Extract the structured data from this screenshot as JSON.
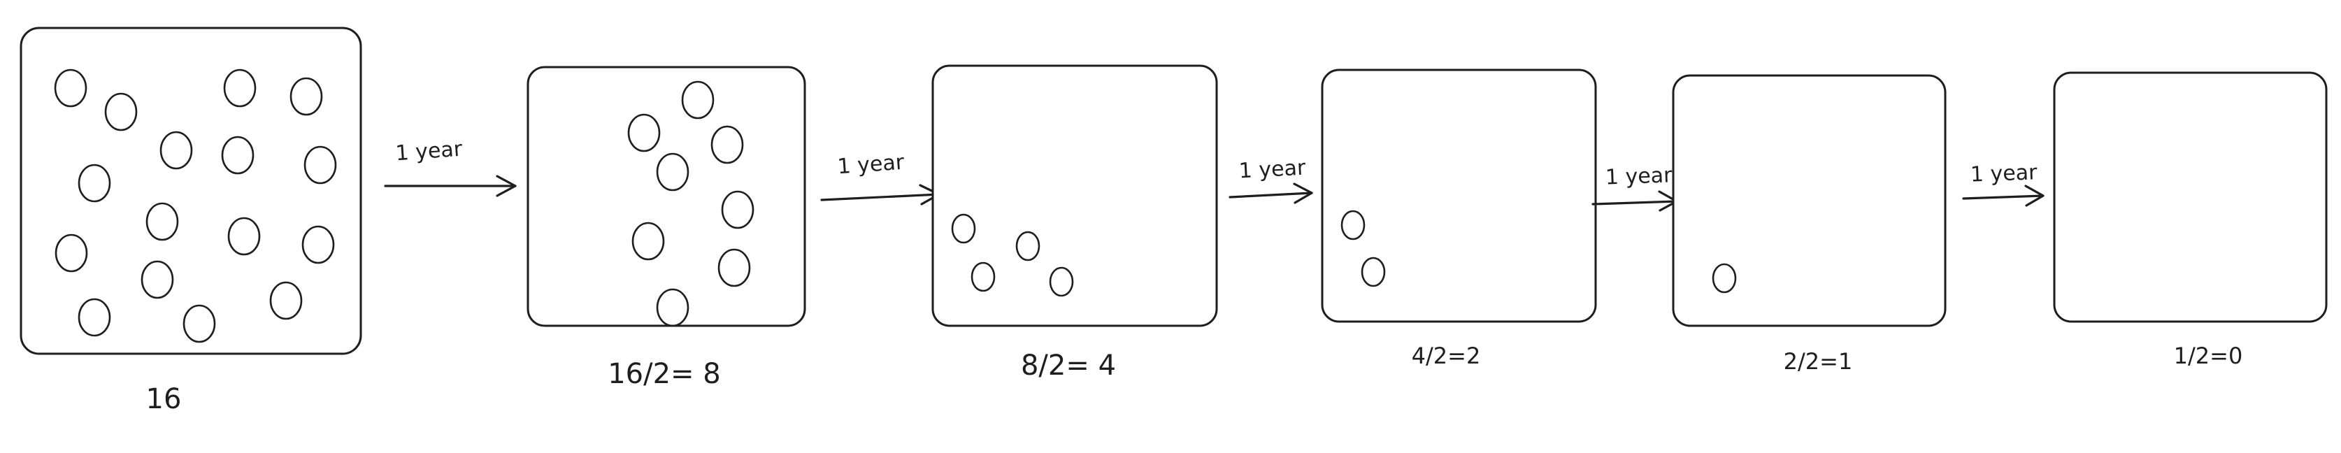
{
  "arrow_label": "1 year",
  "stages": [
    {
      "caption": "16",
      "count": 16
    },
    {
      "caption": "16/2= 8",
      "count": 8
    },
    {
      "caption": "8/2= 4",
      "count": 4
    },
    {
      "caption": "4/2=2",
      "count": 2
    },
    {
      "caption": "2/2=1",
      "count": 1
    },
    {
      "caption": "1/2=0",
      "count": 0
    }
  ],
  "arrows": [
    {
      "label": "1 year"
    },
    {
      "label": "1 year"
    },
    {
      "label": "1 year"
    },
    {
      "label": "1 year"
    },
    {
      "label": "1 year"
    }
  ],
  "colors": {
    "stroke": "#1e1e1e",
    "background": "#ffffff"
  }
}
